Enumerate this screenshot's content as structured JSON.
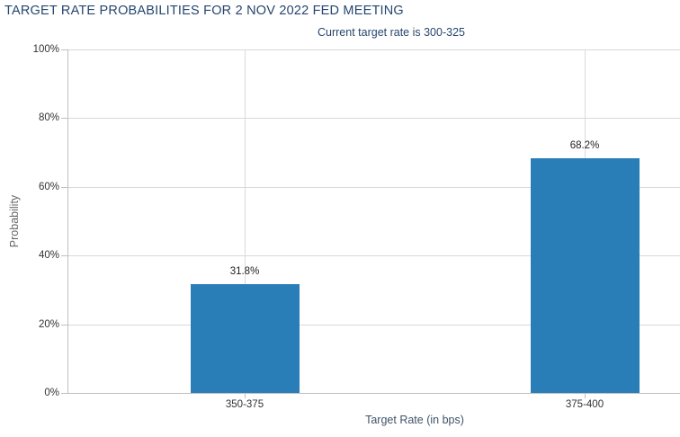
{
  "chart_data": {
    "type": "bar",
    "title": "TARGET RATE PROBABILITIES FOR 2 NOV 2022 FED MEETING",
    "subtitle": "Current target rate is 300-325",
    "xlabel": "Target Rate (in bps)",
    "ylabel": "Probability",
    "categories": [
      "350-375",
      "375-400"
    ],
    "values": [
      31.8,
      68.2
    ],
    "data_labels": [
      "31.8%",
      "68.2%"
    ],
    "ylim": [
      0,
      100
    ],
    "ytick_interval": 20,
    "ytick_labels": [
      "0%",
      "20%",
      "40%",
      "60%",
      "80%",
      "100%"
    ],
    "grid": true,
    "legend": "none",
    "colors": {
      "bar": "#2a7eb8",
      "title": "#26466f",
      "subtitle": "#26466f",
      "gridline": "#d9d9d9",
      "axis_line": "#c0c0c0",
      "tick_label": "#333333",
      "data_label": "#222222",
      "xaxis_title": "#3e5468",
      "yaxis_title": "#666666"
    }
  }
}
